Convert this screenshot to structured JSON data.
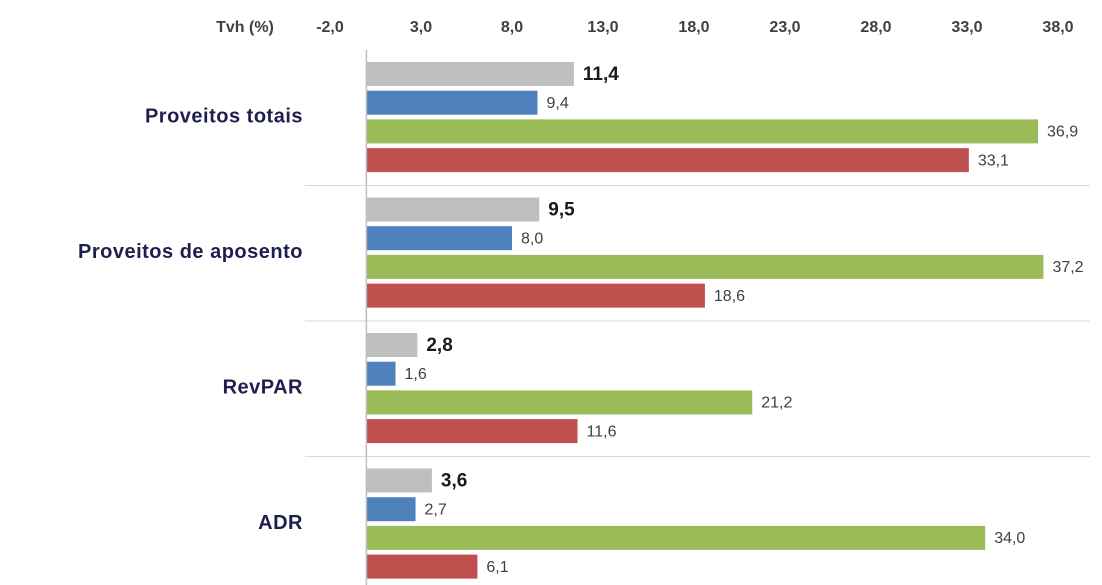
{
  "chart_data": {
    "type": "bar",
    "orientation": "horizontal",
    "axis_label": "Tvh (%)",
    "categories": [
      "Proveitos totais",
      "Proveitos de aposento",
      "RevPAR",
      "ADR"
    ],
    "series": [
      {
        "color": "#bfbfbf",
        "values": [
          11.4,
          9.5,
          2.8,
          3.6
        ],
        "value_labels": [
          "11,4",
          "9,5",
          "2,8",
          "3,6"
        ]
      },
      {
        "color": "#4f81bd",
        "values": [
          9.4,
          8.0,
          1.6,
          2.7
        ],
        "value_labels": [
          "9,4",
          "8,0",
          "1,6",
          "2,7"
        ]
      },
      {
        "color": "#9bbb59",
        "values": [
          36.9,
          37.2,
          21.2,
          34.0
        ],
        "value_labels": [
          "36,9",
          "37,2",
          "21,2",
          "34,0"
        ]
      },
      {
        "color": "#c0504d",
        "values": [
          33.1,
          18.6,
          11.6,
          6.1
        ],
        "value_labels": [
          "33,1",
          "18,6",
          "11,6",
          "6,1"
        ]
      }
    ],
    "xlim": [
      -2,
      38
    ],
    "xticks": [
      {
        "value": -2,
        "label": "-2,0"
      },
      {
        "value": 3,
        "label": "3,0"
      },
      {
        "value": 8,
        "label": "8,0"
      },
      {
        "value": 13,
        "label": "13,0"
      },
      {
        "value": 18,
        "label": "18,0"
      },
      {
        "value": 23,
        "label": "23,0"
      },
      {
        "value": 28,
        "label": "28,0"
      },
      {
        "value": 33,
        "label": "33,0"
      },
      {
        "value": 38,
        "label": "38,0"
      }
    ]
  }
}
